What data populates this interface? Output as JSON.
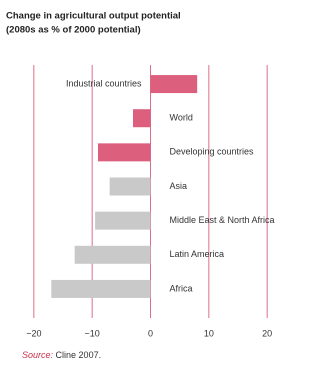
{
  "chart_data": {
    "type": "barh",
    "title": "Change in agricultural output potential",
    "subtitle": "(2080s as % of 2000 potential)",
    "categories": [
      "Industrial countries",
      "World",
      "Developing countries",
      "Asia",
      "Middle East & North Africa",
      "Latin America",
      "Africa"
    ],
    "values": [
      8,
      -3,
      -9,
      -7,
      -9.5,
      -13,
      -17
    ],
    "colors": [
      "#dc5f7d",
      "#dc5f7d",
      "#dc5f7d",
      "#c9c9c9",
      "#c9c9c9",
      "#c9c9c9",
      "#c9c9c9"
    ],
    "xlim": [
      -21,
      21
    ],
    "xticks": [
      {
        "value": -20,
        "label": "−20"
      },
      {
        "value": -10,
        "label": "−10"
      },
      0,
      10,
      20
    ],
    "grid": true,
    "source_label": "Source:",
    "source": "Cline 2007."
  }
}
